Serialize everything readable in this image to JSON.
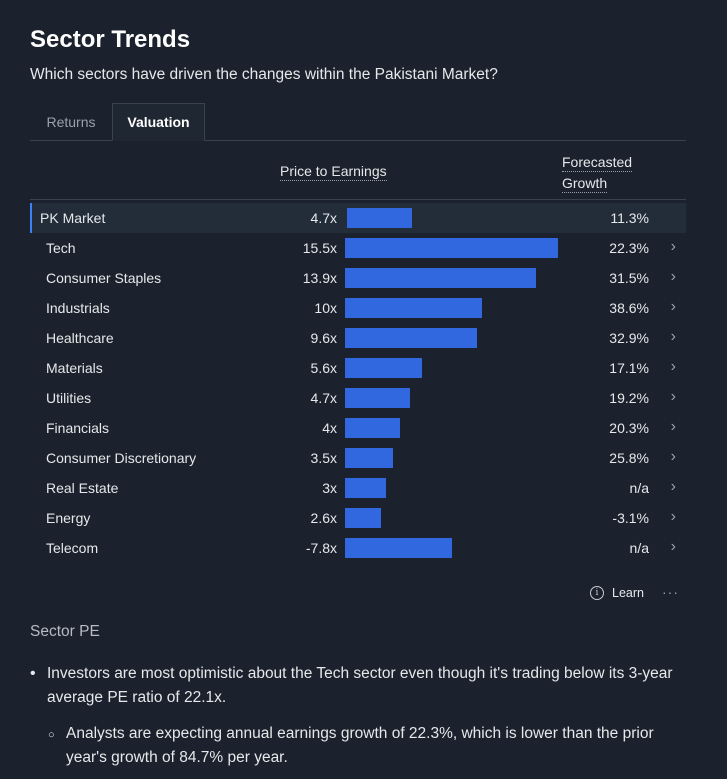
{
  "header": {
    "title": "Sector Trends",
    "subtitle": "Which sectors have driven the changes within the Pakistani Market?"
  },
  "tabs": [
    {
      "label": "Returns",
      "active": false
    },
    {
      "label": "Valuation",
      "active": true
    }
  ],
  "table": {
    "col_pe": "Price to Earnings",
    "col_growth_line1": "Forecasted",
    "col_growth_line2": "Growth",
    "bar_scale_max": 15.5,
    "bar_color": "#3168e0",
    "rows": [
      {
        "name": "PK Market",
        "pe_label": "4.7x",
        "pe": 4.7,
        "growth": "11.3%",
        "highlight": true
      },
      {
        "name": "Tech",
        "pe_label": "15.5x",
        "pe": 15.5,
        "growth": "22.3%"
      },
      {
        "name": "Consumer Staples",
        "pe_label": "13.9x",
        "pe": 13.9,
        "growth": "31.5%"
      },
      {
        "name": "Industrials",
        "pe_label": "10x",
        "pe": 10,
        "growth": "38.6%"
      },
      {
        "name": "Healthcare",
        "pe_label": "9.6x",
        "pe": 9.6,
        "growth": "32.9%"
      },
      {
        "name": "Materials",
        "pe_label": "5.6x",
        "pe": 5.6,
        "growth": "17.1%"
      },
      {
        "name": "Utilities",
        "pe_label": "4.7x",
        "pe": 4.7,
        "growth": "19.2%"
      },
      {
        "name": "Financials",
        "pe_label": "4x",
        "pe": 4,
        "growth": "20.3%"
      },
      {
        "name": "Consumer Discretionary",
        "pe_label": "3.5x",
        "pe": 3.5,
        "growth": "25.8%"
      },
      {
        "name": "Real Estate",
        "pe_label": "3x",
        "pe": 3,
        "growth": "n/a"
      },
      {
        "name": "Energy",
        "pe_label": "2.6x",
        "pe": 2.6,
        "growth": "-3.1%"
      },
      {
        "name": "Telecom",
        "pe_label": "-7.8x",
        "pe": -7.8,
        "growth": "n/a"
      }
    ]
  },
  "footer": {
    "learn_label": "Learn",
    "more_label": "···"
  },
  "insights": {
    "section_title": "Sector PE",
    "bullet1": "Investors are most optimistic about the Tech sector even though it's trading below its 3-year average PE ratio of 22.1x.",
    "bullet2": "Analysts are expecting annual earnings growth of 22.3%, which is lower than the prior year's growth of 84.7% per year."
  },
  "icons": {
    "info": "info-circle-icon",
    "chevron": "chevron-right-icon"
  }
}
